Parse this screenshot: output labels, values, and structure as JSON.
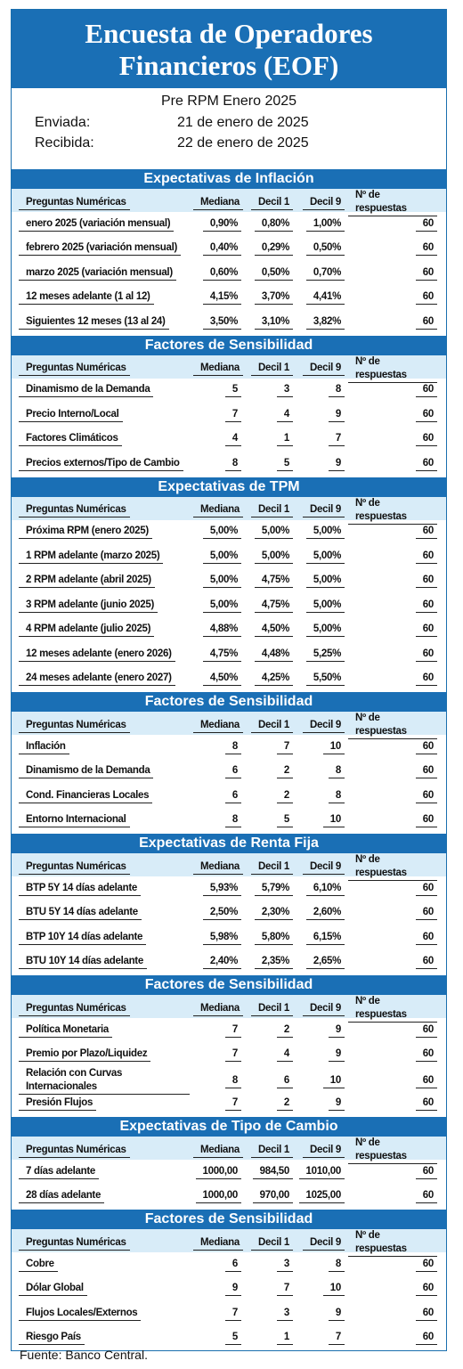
{
  "header": {
    "title": "Encuesta de Operadores Financieros (EOF)",
    "subtitle": "Pre RPM Enero 2025",
    "sent_label": "Enviada:",
    "sent_date": "21 de enero de 2025",
    "received_label": "Recibida:",
    "received_date": "22 de enero de 2025"
  },
  "sections": [
    {
      "title": "Expectativas de Inflación",
      "columns": [
        "Preguntas Numéricas",
        "Mediana",
        "Decil 1",
        "Decil 9",
        "Nº de respuestas"
      ],
      "rows": [
        [
          "enero 2025 (variación mensual)",
          "0,90%",
          "0,80%",
          "1,00%",
          "60"
        ],
        [
          "febrero 2025 (variación mensual)",
          "0,40%",
          "0,29%",
          "0,50%",
          "60"
        ],
        [
          "marzo 2025 (variación mensual)",
          "0,60%",
          "0,50%",
          "0,70%",
          "60"
        ],
        [
          "12 meses adelante (1 al 12)",
          "4,15%",
          "3,70%",
          "4,41%",
          "60"
        ],
        [
          "Siguientes 12 meses (13 al 24)",
          "3,50%",
          "3,10%",
          "3,82%",
          "60"
        ]
      ]
    },
    {
      "title": "Factores de Sensibilidad",
      "columns": [
        "Preguntas Numéricas",
        "Mediana",
        "Decil 1",
        "Decil 9",
        "Nº de respuestas"
      ],
      "rows": [
        [
          "Dinamismo de la Demanda",
          "5",
          "3",
          "8",
          "60"
        ],
        [
          "Precio Interno/Local",
          "7",
          "4",
          "9",
          "60"
        ],
        [
          "Factores Climáticos",
          "4",
          "1",
          "7",
          "60"
        ],
        [
          "Precios externos/Tipo de Cambio",
          "8",
          "5",
          "9",
          "60"
        ]
      ]
    },
    {
      "title": "Expectativas de TPM",
      "columns": [
        "Preguntas Numéricas",
        "Mediana",
        "Decil 1",
        "Decil 9",
        "Nº de respuestas"
      ],
      "rows": [
        [
          "Próxima  RPM  (enero 2025)",
          "5,00%",
          "5,00%",
          "5,00%",
          "60"
        ],
        [
          "1 RPM adelante  (marzo 2025)",
          "5,00%",
          "5,00%",
          "5,00%",
          "60"
        ],
        [
          "2 RPM adelante  (abril 2025)",
          "5,00%",
          "4,75%",
          "5,00%",
          "60"
        ],
        [
          "3 RPM adelante  (junio 2025)",
          "5,00%",
          "4,75%",
          "5,00%",
          "60"
        ],
        [
          "4 RPM adelante  (julio 2025)",
          "4,88%",
          "4,50%",
          "5,00%",
          "60"
        ],
        [
          "12 meses adelante  (enero 2026)",
          "4,75%",
          "4,48%",
          "5,25%",
          "60"
        ],
        [
          "24 meses adelante  (enero 2027)",
          "4,50%",
          "4,25%",
          "5,50%",
          "60"
        ]
      ]
    },
    {
      "title": "Factores de Sensibilidad",
      "columns": [
        "Preguntas Numéricas",
        "Mediana",
        "Decil 1",
        "Decil 9",
        "Nº de respuestas"
      ],
      "rows": [
        [
          "Inflación",
          "8",
          "7",
          "10",
          "60"
        ],
        [
          "Dinamismo de la Demanda",
          "6",
          "2",
          "8",
          "60"
        ],
        [
          "Cond. Financieras Locales",
          "6",
          "2",
          "8",
          "60"
        ],
        [
          "Entorno Internacional",
          "8",
          "5",
          "10",
          "60"
        ]
      ]
    },
    {
      "title": "Expectativas  de Renta Fija",
      "columns": [
        "Preguntas Numéricas",
        "Mediana",
        "Decil 1",
        "Decil 9",
        "Nº de respuestas"
      ],
      "rows": [
        [
          "BTP 5Y 14 días adelante",
          "5,93%",
          "5,79%",
          "6,10%",
          "60"
        ],
        [
          "BTU 5Y 14 días adelante",
          "2,50%",
          "2,30%",
          "2,60%",
          "60"
        ],
        [
          "BTP 10Y 14 días adelante",
          "5,98%",
          "5,80%",
          "6,15%",
          "60"
        ],
        [
          "BTU 10Y 14 días adelante",
          "2,40%",
          "2,35%",
          "2,65%",
          "60"
        ]
      ]
    },
    {
      "title": "Factores de Sensibilidad",
      "columns": [
        "Preguntas Numéricas",
        "Mediana",
        "Decil 1",
        "Decil 9",
        "Nº de respuestas"
      ],
      "rows": [
        [
          "Política Monetaria",
          "7",
          "2",
          "9",
          "60"
        ],
        [
          "Premio por Plazo/Liquidez",
          "7",
          "4",
          "9",
          "60"
        ],
        [
          "Relación con Curvas Internacionales",
          "8",
          "6",
          "10",
          "60"
        ],
        [
          "Presión Flujos",
          "7",
          "2",
          "9",
          "60"
        ]
      ]
    },
    {
      "title": "Expectativas  de Tipo de Cambio",
      "columns": [
        "Preguntas Numéricas",
        "Mediana",
        "Decil 1",
        "Decil 9",
        "Nº de respuestas"
      ],
      "rows": [
        [
          "7 días adelante",
          "1000,00",
          "984,50",
          "1010,00",
          "60"
        ],
        [
          "28 días adelante",
          "1000,00",
          "970,00",
          "1025,00",
          "60"
        ]
      ]
    },
    {
      "title": "Factores de Sensibilidad",
      "columns": [
        "Preguntas Numéricas",
        "Mediana",
        "Decil 1",
        "Decil 9",
        "Nº de respuestas"
      ],
      "rows": [
        [
          "Cobre",
          "6",
          "3",
          "8",
          "60"
        ],
        [
          "Dólar Global",
          "9",
          "7",
          "10",
          "60"
        ],
        [
          "Flujos Locales/Externos",
          "7",
          "3",
          "9",
          "60"
        ],
        [
          "Riesgo País",
          "5",
          "1",
          "7",
          "60"
        ]
      ]
    }
  ],
  "footer": "Fuente: Banco Central."
}
